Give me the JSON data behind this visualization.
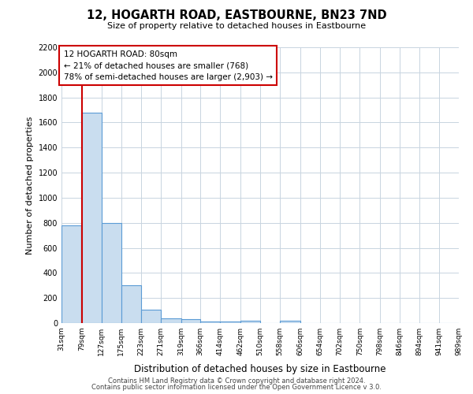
{
  "title": "12, HOGARTH ROAD, EASTBOURNE, BN23 7ND",
  "subtitle": "Size of property relative to detached houses in Eastbourne",
  "xlabel": "Distribution of detached houses by size in Eastbourne",
  "ylabel": "Number of detached properties",
  "bin_edges": [
    31,
    79,
    127,
    175,
    223,
    271,
    319,
    366,
    414,
    462,
    510,
    558,
    606,
    654,
    702,
    750,
    798,
    846,
    894,
    941,
    989
  ],
  "bin_labels": [
    "31sqm",
    "79sqm",
    "127sqm",
    "175sqm",
    "223sqm",
    "271sqm",
    "319sqm",
    "366sqm",
    "414sqm",
    "462sqm",
    "510sqm",
    "558sqm",
    "606sqm",
    "654sqm",
    "702sqm",
    "750sqm",
    "798sqm",
    "846sqm",
    "894sqm",
    "941sqm",
    "989sqm"
  ],
  "bar_heights": [
    780,
    1680,
    800,
    300,
    110,
    35,
    30,
    15,
    10,
    20,
    0,
    20,
    0,
    0,
    0,
    0,
    0,
    0,
    0,
    0
  ],
  "bar_color": "#c9ddef",
  "bar_edge_color": "#5b9bd5",
  "vline_x": 80,
  "vline_color": "#cc0000",
  "annotation_line1": "12 HOGARTH ROAD: 80sqm",
  "annotation_line2": "← 21% of detached houses are smaller (768)",
  "annotation_line3": "78% of semi-detached houses are larger (2,903) →",
  "annotation_box_color": "#ffffff",
  "annotation_box_edge": "#cc0000",
  "ylim": [
    0,
    2200
  ],
  "yticks": [
    0,
    200,
    400,
    600,
    800,
    1000,
    1200,
    1400,
    1600,
    1800,
    2000,
    2200
  ],
  "footer_line1": "Contains HM Land Registry data © Crown copyright and database right 2024.",
  "footer_line2": "Contains public sector information licensed under the Open Government Licence v 3.0.",
  "bg_color": "#ffffff",
  "grid_color": "#c8d4e0"
}
